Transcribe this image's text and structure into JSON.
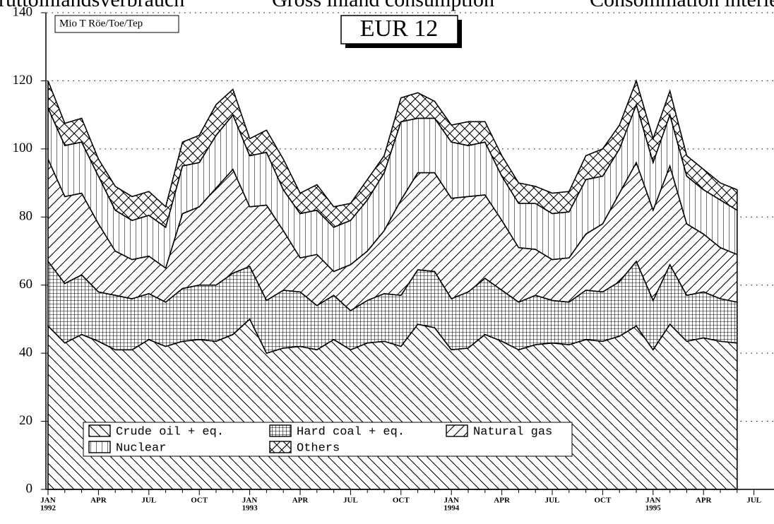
{
  "chart_data": {
    "type": "stacked_area",
    "header": [
      "Bruttoinlandsverbrauch",
      "Gross inland consumption",
      "Consommation intérieure brute"
    ],
    "title": "EUR 12",
    "unit_label": "Mio T Röe/Toe/Tep",
    "categories": [
      "JAN",
      null,
      null,
      "APR",
      null,
      null,
      "JUL",
      null,
      null,
      "OCT",
      null,
      null,
      "JAN",
      null,
      null,
      "APR",
      null,
      null,
      "JUL",
      null,
      null,
      "OCT",
      null,
      null,
      "JAN",
      null,
      null,
      "APR",
      null,
      null,
      "JUL",
      null,
      null,
      "OCT",
      null,
      null,
      "JAN",
      null,
      null,
      "APR",
      null,
      null,
      "JUL"
    ],
    "years": [
      "1992",
      null,
      null,
      null,
      null,
      null,
      null,
      null,
      null,
      null,
      null,
      null,
      "1993",
      null,
      null,
      null,
      null,
      null,
      null,
      null,
      null,
      null,
      null,
      null,
      "1994",
      null,
      null,
      null,
      null,
      null,
      null,
      null,
      null,
      null,
      null,
      null,
      "1995",
      null,
      null,
      null,
      null,
      null,
      null
    ],
    "series": [
      {
        "name": "Crude oil + eq.",
        "pattern": "backslash",
        "color": "#000000",
        "values": [
          48,
          43,
          45.5,
          43.5,
          41,
          41,
          44,
          42,
          43.5,
          44,
          43.5,
          45.5,
          50,
          40,
          41.5,
          42,
          41,
          44,
          41,
          43,
          43.5,
          42,
          48.5,
          47.5,
          41,
          41.5,
          45.5,
          43.5,
          41,
          42.5,
          43,
          42.5,
          44,
          43.5,
          45,
          48,
          41,
          48.5,
          43.5,
          44.5,
          43.5,
          43,
          null
        ]
      },
      {
        "name": "Hard coal + eq.",
        "pattern": "grid",
        "color": "#000000",
        "values": [
          19,
          17.5,
          17.5,
          14.5,
          16,
          15,
          13.5,
          13,
          15.5,
          16,
          16.5,
          18,
          15.5,
          15.5,
          17,
          16,
          13,
          13,
          11.5,
          12.5,
          14,
          15,
          16,
          16.5,
          15,
          16.5,
          16.5,
          15,
          14,
          14.5,
          12.5,
          12.5,
          14.5,
          14.5,
          16,
          19,
          14.5,
          17.5,
          13.5,
          13.5,
          12.5,
          12,
          null
        ]
      },
      {
        "name": "Natural gas",
        "pattern": "slash",
        "color": "#000000",
        "values": [
          30,
          25.5,
          24,
          20,
          13,
          11.5,
          11,
          10,
          22,
          23,
          28.5,
          30.5,
          17.5,
          28,
          17.5,
          10,
          15,
          7,
          13.5,
          14.5,
          18.5,
          28,
          28.5,
          29,
          29.5,
          28,
          24.5,
          20.5,
          16,
          13.5,
          12,
          13,
          16.5,
          20,
          26,
          29,
          26.5,
          29,
          21,
          17,
          15,
          14,
          null
        ]
      },
      {
        "name": "Nuclear",
        "pattern": "vertical",
        "color": "#000000",
        "values": [
          15,
          15,
          15,
          14,
          12,
          11.5,
          12,
          12,
          14,
          13,
          15.5,
          16,
          15,
          15.5,
          12,
          13,
          13,
          13,
          13,
          15,
          17,
          23,
          16,
          16,
          16.5,
          15,
          15.5,
          13,
          13,
          13.5,
          13.5,
          13.5,
          16,
          14,
          13,
          17,
          14,
          15,
          14,
          13,
          14,
          13,
          null
        ]
      },
      {
        "name": "Others",
        "pattern": "cross",
        "color": "#000000",
        "values": [
          8,
          6.5,
          7,
          5,
          7,
          7,
          7,
          6,
          7,
          8,
          9,
          7.5,
          5,
          6.5,
          9,
          6,
          7.5,
          6,
          5,
          6,
          5,
          7,
          7.5,
          5,
          5,
          7,
          6,
          6,
          6,
          5,
          6,
          6,
          7,
          8,
          7,
          7,
          7,
          7,
          6,
          6,
          5,
          6,
          null
        ]
      }
    ],
    "ylim": [
      0,
      140
    ],
    "yticks": [
      0,
      20,
      40,
      60,
      80,
      100,
      120,
      140
    ],
    "grid": true,
    "legend": "lower left"
  }
}
